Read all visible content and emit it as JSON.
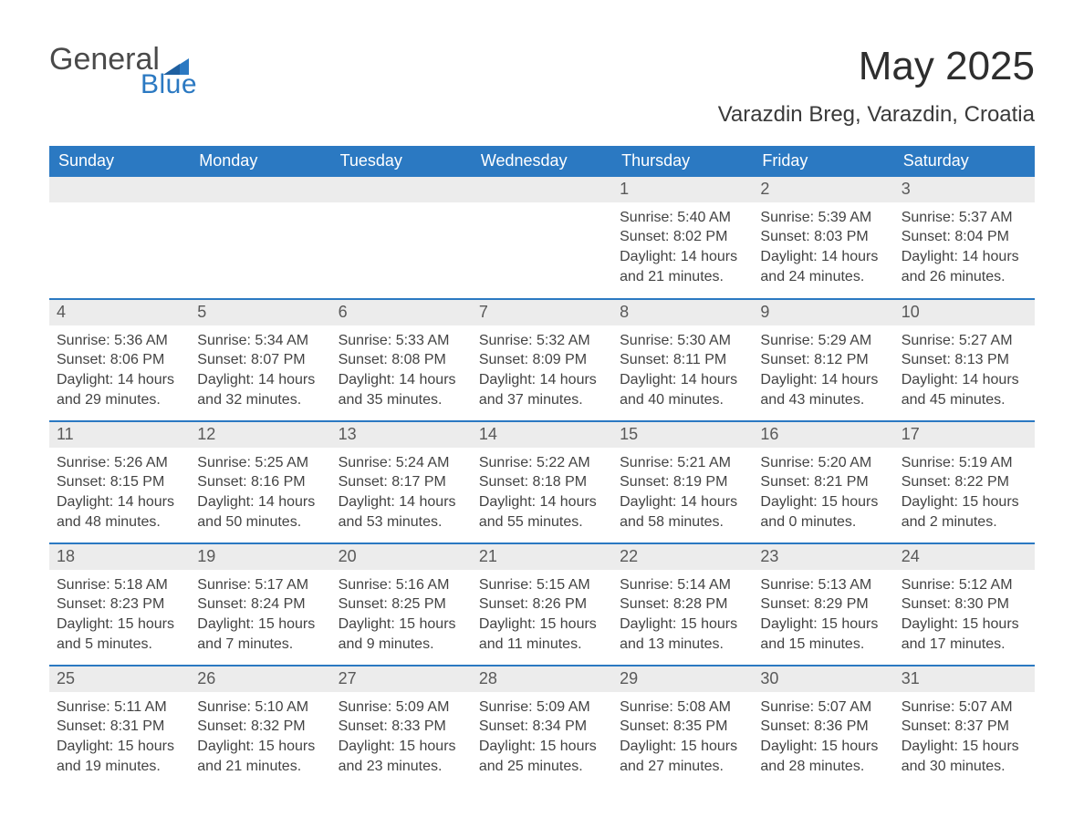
{
  "colors": {
    "header_bg": "#2b79c2",
    "header_text": "#ffffff",
    "daynum_bg": "#ececec",
    "daynum_text": "#595959",
    "body_text": "#434343",
    "week_divider": "#2b79c2",
    "page_bg": "#ffffff",
    "logo_general": "#4a4a4a",
    "logo_blue": "#2b79c2",
    "title_text": "#2e2e2e"
  },
  "typography": {
    "font_family": "Arial, Helvetica, sans-serif",
    "month_title_pt": 44,
    "location_pt": 24,
    "weekday_header_pt": 18,
    "daynum_pt": 18,
    "body_pt": 16
  },
  "logo": {
    "word1": "General",
    "word2": "Blue"
  },
  "title": "May 2025",
  "location": "Varazdin Breg, Varazdin, Croatia",
  "weekdays": [
    "Sunday",
    "Monday",
    "Tuesday",
    "Wednesday",
    "Thursday",
    "Friday",
    "Saturday"
  ],
  "weeks": [
    [
      null,
      null,
      null,
      null,
      {
        "n": "1",
        "sunrise": "Sunrise: 5:40 AM",
        "sunset": "Sunset: 8:02 PM",
        "daylight": "Daylight: 14 hours and 21 minutes."
      },
      {
        "n": "2",
        "sunrise": "Sunrise: 5:39 AM",
        "sunset": "Sunset: 8:03 PM",
        "daylight": "Daylight: 14 hours and 24 minutes."
      },
      {
        "n": "3",
        "sunrise": "Sunrise: 5:37 AM",
        "sunset": "Sunset: 8:04 PM",
        "daylight": "Daylight: 14 hours and 26 minutes."
      }
    ],
    [
      {
        "n": "4",
        "sunrise": "Sunrise: 5:36 AM",
        "sunset": "Sunset: 8:06 PM",
        "daylight": "Daylight: 14 hours and 29 minutes."
      },
      {
        "n": "5",
        "sunrise": "Sunrise: 5:34 AM",
        "sunset": "Sunset: 8:07 PM",
        "daylight": "Daylight: 14 hours and 32 minutes."
      },
      {
        "n": "6",
        "sunrise": "Sunrise: 5:33 AM",
        "sunset": "Sunset: 8:08 PM",
        "daylight": "Daylight: 14 hours and 35 minutes."
      },
      {
        "n": "7",
        "sunrise": "Sunrise: 5:32 AM",
        "sunset": "Sunset: 8:09 PM",
        "daylight": "Daylight: 14 hours and 37 minutes."
      },
      {
        "n": "8",
        "sunrise": "Sunrise: 5:30 AM",
        "sunset": "Sunset: 8:11 PM",
        "daylight": "Daylight: 14 hours and 40 minutes."
      },
      {
        "n": "9",
        "sunrise": "Sunrise: 5:29 AM",
        "sunset": "Sunset: 8:12 PM",
        "daylight": "Daylight: 14 hours and 43 minutes."
      },
      {
        "n": "10",
        "sunrise": "Sunrise: 5:27 AM",
        "sunset": "Sunset: 8:13 PM",
        "daylight": "Daylight: 14 hours and 45 minutes."
      }
    ],
    [
      {
        "n": "11",
        "sunrise": "Sunrise: 5:26 AM",
        "sunset": "Sunset: 8:15 PM",
        "daylight": "Daylight: 14 hours and 48 minutes."
      },
      {
        "n": "12",
        "sunrise": "Sunrise: 5:25 AM",
        "sunset": "Sunset: 8:16 PM",
        "daylight": "Daylight: 14 hours and 50 minutes."
      },
      {
        "n": "13",
        "sunrise": "Sunrise: 5:24 AM",
        "sunset": "Sunset: 8:17 PM",
        "daylight": "Daylight: 14 hours and 53 minutes."
      },
      {
        "n": "14",
        "sunrise": "Sunrise: 5:22 AM",
        "sunset": "Sunset: 8:18 PM",
        "daylight": "Daylight: 14 hours and 55 minutes."
      },
      {
        "n": "15",
        "sunrise": "Sunrise: 5:21 AM",
        "sunset": "Sunset: 8:19 PM",
        "daylight": "Daylight: 14 hours and 58 minutes."
      },
      {
        "n": "16",
        "sunrise": "Sunrise: 5:20 AM",
        "sunset": "Sunset: 8:21 PM",
        "daylight": "Daylight: 15 hours and 0 minutes."
      },
      {
        "n": "17",
        "sunrise": "Sunrise: 5:19 AM",
        "sunset": "Sunset: 8:22 PM",
        "daylight": "Daylight: 15 hours and 2 minutes."
      }
    ],
    [
      {
        "n": "18",
        "sunrise": "Sunrise: 5:18 AM",
        "sunset": "Sunset: 8:23 PM",
        "daylight": "Daylight: 15 hours and 5 minutes."
      },
      {
        "n": "19",
        "sunrise": "Sunrise: 5:17 AM",
        "sunset": "Sunset: 8:24 PM",
        "daylight": "Daylight: 15 hours and 7 minutes."
      },
      {
        "n": "20",
        "sunrise": "Sunrise: 5:16 AM",
        "sunset": "Sunset: 8:25 PM",
        "daylight": "Daylight: 15 hours and 9 minutes."
      },
      {
        "n": "21",
        "sunrise": "Sunrise: 5:15 AM",
        "sunset": "Sunset: 8:26 PM",
        "daylight": "Daylight: 15 hours and 11 minutes."
      },
      {
        "n": "22",
        "sunrise": "Sunrise: 5:14 AM",
        "sunset": "Sunset: 8:28 PM",
        "daylight": "Daylight: 15 hours and 13 minutes."
      },
      {
        "n": "23",
        "sunrise": "Sunrise: 5:13 AM",
        "sunset": "Sunset: 8:29 PM",
        "daylight": "Daylight: 15 hours and 15 minutes."
      },
      {
        "n": "24",
        "sunrise": "Sunrise: 5:12 AM",
        "sunset": "Sunset: 8:30 PM",
        "daylight": "Daylight: 15 hours and 17 minutes."
      }
    ],
    [
      {
        "n": "25",
        "sunrise": "Sunrise: 5:11 AM",
        "sunset": "Sunset: 8:31 PM",
        "daylight": "Daylight: 15 hours and 19 minutes."
      },
      {
        "n": "26",
        "sunrise": "Sunrise: 5:10 AM",
        "sunset": "Sunset: 8:32 PM",
        "daylight": "Daylight: 15 hours and 21 minutes."
      },
      {
        "n": "27",
        "sunrise": "Sunrise: 5:09 AM",
        "sunset": "Sunset: 8:33 PM",
        "daylight": "Daylight: 15 hours and 23 minutes."
      },
      {
        "n": "28",
        "sunrise": "Sunrise: 5:09 AM",
        "sunset": "Sunset: 8:34 PM",
        "daylight": "Daylight: 15 hours and 25 minutes."
      },
      {
        "n": "29",
        "sunrise": "Sunrise: 5:08 AM",
        "sunset": "Sunset: 8:35 PM",
        "daylight": "Daylight: 15 hours and 27 minutes."
      },
      {
        "n": "30",
        "sunrise": "Sunrise: 5:07 AM",
        "sunset": "Sunset: 8:36 PM",
        "daylight": "Daylight: 15 hours and 28 minutes."
      },
      {
        "n": "31",
        "sunrise": "Sunrise: 5:07 AM",
        "sunset": "Sunset: 8:37 PM",
        "daylight": "Daylight: 15 hours and 30 minutes."
      }
    ]
  ]
}
